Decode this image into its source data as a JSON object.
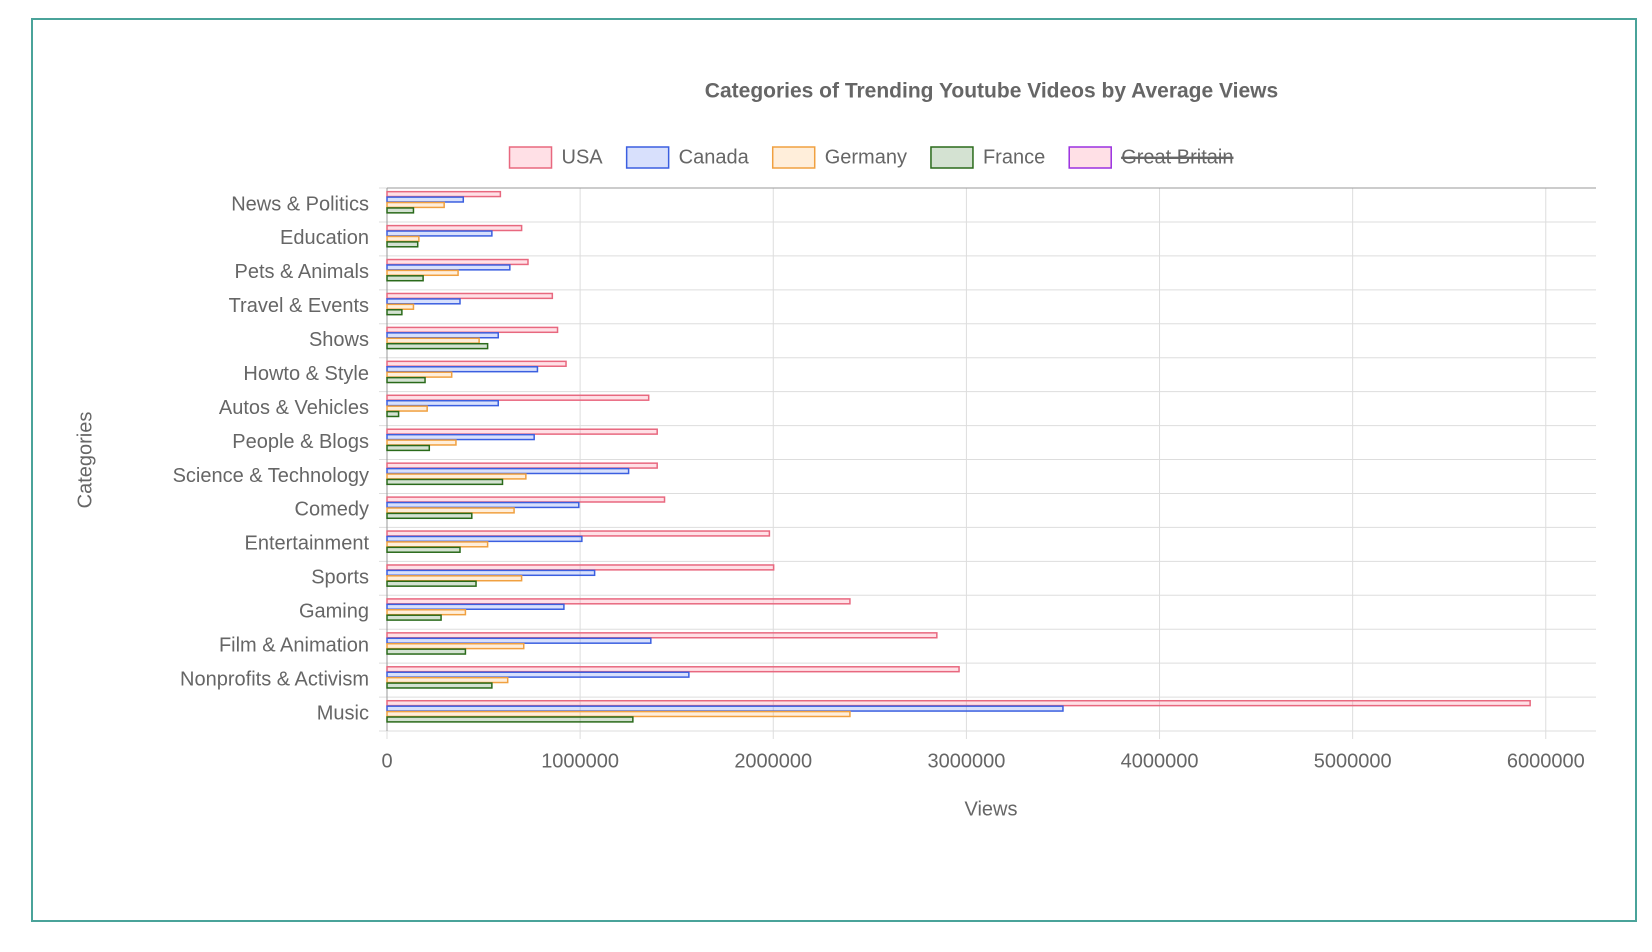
{
  "chart_data": {
    "type": "hbar",
    "title": "Categories of Trending Youtube Videos by Average Views",
    "x_label": "Views",
    "y_label": "Categories",
    "categories": [
      "News & Politics",
      "Education",
      "Pets & Animals",
      "Travel & Events",
      "Shows",
      "Howto & Style",
      "Autos & Vehicles",
      "People & Blogs",
      "Science & Technology",
      "Comedy",
      "Entertainment",
      "Sports",
      "Gaming",
      "Film & Animation",
      "Nonprofits & Activism",
      "Music"
    ],
    "series": [
      {
        "name": "USA",
        "color": "#e8687f",
        "fill": "rgba(255,99,132,0.2)",
        "values": [
          587000,
          697000,
          730000,
          856000,
          883000,
          927000,
          1355000,
          1399000,
          1399000,
          1437000,
          1980000,
          2002000,
          2397000,
          2847000,
          2962000,
          5919000
        ]
      },
      {
        "name": "Canada",
        "color": "#3b5fe0",
        "fill": "rgba(60,100,240,0.2)",
        "values": [
          395000,
          543000,
          636000,
          378000,
          576000,
          779000,
          576000,
          762000,
          1251000,
          993000,
          1009000,
          1075000,
          916000,
          1366000,
          1563000,
          3500000
        ]
      },
      {
        "name": "Germany",
        "color": "#f0a040",
        "fill": "rgba(255,170,70,0.2)",
        "values": [
          296000,
          165000,
          368000,
          137000,
          477000,
          335000,
          208000,
          357000,
          719000,
          658000,
          521000,
          697000,
          406000,
          708000,
          625000,
          2397000
        ]
      },
      {
        "name": "France",
        "color": "#2a6a1a",
        "fill": "rgba(40,110,30,0.2)",
        "values": [
          137000,
          159000,
          187000,
          77000,
          521000,
          197000,
          60000,
          219000,
          598000,
          439000,
          378000,
          461000,
          280000,
          406000,
          543000,
          1273000
        ]
      },
      {
        "name": "Great Britain",
        "color": "#9b30e0",
        "fill": "rgba(255,99,132,0.2)",
        "hidden": true,
        "values": [
          null,
          null,
          null,
          null,
          null,
          null,
          null,
          null,
          null,
          null,
          null,
          null,
          null,
          null,
          null,
          null
        ]
      }
    ],
    "xlim": [
      0,
      6260000
    ],
    "xticks": [
      0,
      1000000,
      2000000,
      3000000,
      4000000,
      5000000,
      6000000
    ],
    "grid": true
  }
}
